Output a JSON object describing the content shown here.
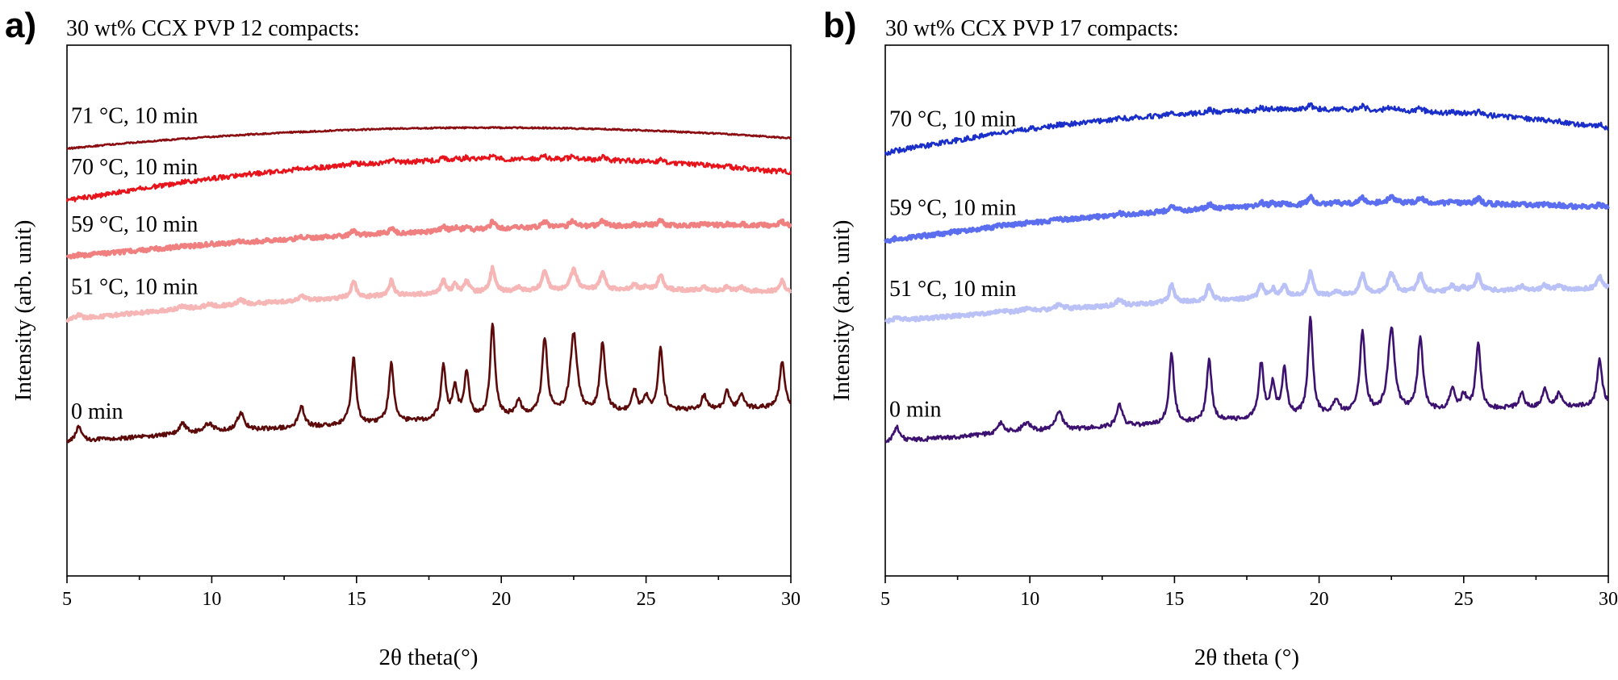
{
  "chart_data": [
    {
      "type": "line",
      "panel_label": "a)",
      "title": "30 wt% CCX PVP 12 compacts:",
      "xlabel": "2θ theta(°)",
      "ylabel": "Intensity (arb. unit)",
      "xlim": [
        5,
        30
      ],
      "xticks": [
        5,
        10,
        15,
        20,
        25,
        30
      ],
      "series": [
        {
          "name": "0 min",
          "color": "#5c0a0a",
          "pattern": "crystalline",
          "baseline": [
            0.0,
            0.07,
            0.1
          ]
        },
        {
          "name": "51 °C, 10 min",
          "color": "#f7b6b6",
          "pattern": "partial",
          "baseline": [
            0.35,
            0.43,
            0.43
          ]
        },
        {
          "name": "59 °C, 10 min",
          "color": "#f08080",
          "pattern": "weak",
          "baseline": [
            0.53,
            0.61,
            0.62
          ]
        },
        {
          "name": "70 °C, 10 min",
          "color": "#e8141c",
          "pattern": "amorphous",
          "baseline": [
            0.69,
            0.81,
            0.77
          ]
        },
        {
          "name": "71 °C, 10 min",
          "color": "#8b0f12",
          "pattern": "smooth",
          "baseline": [
            0.84,
            0.9,
            0.87
          ]
        }
      ]
    },
    {
      "type": "line",
      "panel_label": "b)",
      "title": "30 wt% CCX PVP 17 compacts:",
      "xlabel": "2θ theta (°)",
      "ylabel": "Intensity (arb. unit)",
      "xlim": [
        5,
        30
      ],
      "xticks": [
        5,
        10,
        15,
        20,
        25,
        30
      ],
      "series": [
        {
          "name": "0 min",
          "color": "#3d1170",
          "pattern": "crystalline",
          "baseline": [
            0.0,
            0.07,
            0.1
          ]
        },
        {
          "name": "51 °C, 10 min",
          "color": "#b9c1f7",
          "pattern": "partial",
          "baseline": [
            0.33,
            0.4,
            0.42
          ]
        },
        {
          "name": "59 °C, 10 min",
          "color": "#5b6ef0",
          "pattern": "weak",
          "baseline": [
            0.55,
            0.65,
            0.64
          ]
        },
        {
          "name": "70 °C, 10 min",
          "color": "#1a2ec9",
          "pattern": "amorphous",
          "baseline": [
            0.79,
            0.91,
            0.86
          ]
        }
      ]
    }
  ]
}
